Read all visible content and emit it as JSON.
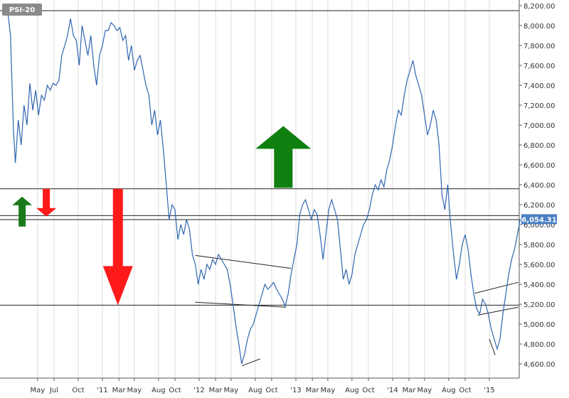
{
  "chart_data": {
    "type": "line",
    "title": "PSI-20",
    "last_value_label": "6,054.31",
    "ylim": [
      4500,
      8250
    ],
    "y_ticks": [
      {
        "value": 4600,
        "label": "4,600.00"
      },
      {
        "value": 4800,
        "label": "4,800.00"
      },
      {
        "value": 5000,
        "label": "5,000.00"
      },
      {
        "value": 5200,
        "label": "5,200.00"
      },
      {
        "value": 5400,
        "label": "5,400.00"
      },
      {
        "value": 5600,
        "label": "5,600.00"
      },
      {
        "value": 5800,
        "label": "5,800.00"
      },
      {
        "value": 6000,
        "label": "6,000.00"
      },
      {
        "value": 6200,
        "label": "6,200.00"
      },
      {
        "value": 6400,
        "label": "6,400.00"
      },
      {
        "value": 6600,
        "label": "6,600.00"
      },
      {
        "value": 6800,
        "label": "6,800.00"
      },
      {
        "value": 7000,
        "label": "7,000.00"
      },
      {
        "value": 7200,
        "label": "7,200.00"
      },
      {
        "value": 7400,
        "label": "7,400.00"
      },
      {
        "value": 7600,
        "label": "7,600.00"
      },
      {
        "value": 7800,
        "label": "7,800.00"
      },
      {
        "value": 8000,
        "label": "8,000.00"
      },
      {
        "value": 8200,
        "label": "8,200.00"
      }
    ],
    "x_ticks": [
      {
        "t": 2010.33,
        "label": "May"
      },
      {
        "t": 2010.5,
        "label": "Jul"
      },
      {
        "t": 2010.75,
        "label": "Oct"
      },
      {
        "t": 2011.0,
        "label": "'11"
      },
      {
        "t": 2011.17,
        "label": "Mar"
      },
      {
        "t": 2011.33,
        "label": "May"
      },
      {
        "t": 2011.58,
        "label": "Aug"
      },
      {
        "t": 2011.75,
        "label": "Oct"
      },
      {
        "t": 2012.0,
        "label": "'12"
      },
      {
        "t": 2012.17,
        "label": "Mar"
      },
      {
        "t": 2012.33,
        "label": "May"
      },
      {
        "t": 2012.58,
        "label": "Aug"
      },
      {
        "t": 2012.75,
        "label": "Oct"
      },
      {
        "t": 2013.0,
        "label": "'13"
      },
      {
        "t": 2013.17,
        "label": "Mar"
      },
      {
        "t": 2013.33,
        "label": "May"
      },
      {
        "t": 2013.58,
        "label": "Aug"
      },
      {
        "t": 2013.75,
        "label": "Oct"
      },
      {
        "t": 2014.0,
        "label": "'14"
      },
      {
        "t": 2014.17,
        "label": "Mar"
      },
      {
        "t": 2014.33,
        "label": "May"
      },
      {
        "t": 2014.58,
        "label": "Aug"
      },
      {
        "t": 2014.75,
        "label": "Oct"
      },
      {
        "t": 2015.0,
        "label": "'15"
      }
    ],
    "grid": "vertical",
    "series": [
      {
        "color": "#2f66b0",
        "points": [
          [
            2010.02,
            8150
          ],
          [
            2010.05,
            7900
          ],
          [
            2010.08,
            6950
          ],
          [
            2010.1,
            6620
          ],
          [
            2010.13,
            7050
          ],
          [
            2010.16,
            6800
          ],
          [
            2010.19,
            7200
          ],
          [
            2010.22,
            7000
          ],
          [
            2010.25,
            7420
          ],
          [
            2010.28,
            7150
          ],
          [
            2010.31,
            7350
          ],
          [
            2010.34,
            7100
          ],
          [
            2010.37,
            7300
          ],
          [
            2010.4,
            7250
          ],
          [
            2010.43,
            7400
          ],
          [
            2010.46,
            7350
          ],
          [
            2010.49,
            7420
          ],
          [
            2010.52,
            7400
          ],
          [
            2010.55,
            7450
          ],
          [
            2010.58,
            7700
          ],
          [
            2010.61,
            7800
          ],
          [
            2010.64,
            7900
          ],
          [
            2010.67,
            8070
          ],
          [
            2010.7,
            7900
          ],
          [
            2010.73,
            7850
          ],
          [
            2010.76,
            7600
          ],
          [
            2010.79,
            8000
          ],
          [
            2010.82,
            7850
          ],
          [
            2010.85,
            7700
          ],
          [
            2010.88,
            7900
          ],
          [
            2010.91,
            7600
          ],
          [
            2010.94,
            7400
          ],
          [
            2010.97,
            7700
          ],
          [
            2011.0,
            7800
          ],
          [
            2011.03,
            7950
          ],
          [
            2011.06,
            7950
          ],
          [
            2011.09,
            8030
          ],
          [
            2011.12,
            8000
          ],
          [
            2011.15,
            7950
          ],
          [
            2011.18,
            7980
          ],
          [
            2011.21,
            7850
          ],
          [
            2011.24,
            7900
          ],
          [
            2011.27,
            7650
          ],
          [
            2011.3,
            7800
          ],
          [
            2011.33,
            7550
          ],
          [
            2011.36,
            7650
          ],
          [
            2011.39,
            7700
          ],
          [
            2011.42,
            7550
          ],
          [
            2011.45,
            7400
          ],
          [
            2011.48,
            7300
          ],
          [
            2011.51,
            7000
          ],
          [
            2011.54,
            7150
          ],
          [
            2011.57,
            6900
          ],
          [
            2011.6,
            7050
          ],
          [
            2011.63,
            6750
          ],
          [
            2011.66,
            6400
          ],
          [
            2011.69,
            6050
          ],
          [
            2011.72,
            6200
          ],
          [
            2011.75,
            6150
          ],
          [
            2011.78,
            5850
          ],
          [
            2011.81,
            6000
          ],
          [
            2011.84,
            5900
          ],
          [
            2011.87,
            6050
          ],
          [
            2011.9,
            5950
          ],
          [
            2011.93,
            5700
          ],
          [
            2011.96,
            5600
          ],
          [
            2011.99,
            5400
          ],
          [
            2012.02,
            5550
          ],
          [
            2012.05,
            5450
          ],
          [
            2012.08,
            5600
          ],
          [
            2012.11,
            5550
          ],
          [
            2012.14,
            5650
          ],
          [
            2012.17,
            5600
          ],
          [
            2012.2,
            5700
          ],
          [
            2012.23,
            5650
          ],
          [
            2012.26,
            5600
          ],
          [
            2012.29,
            5550
          ],
          [
            2012.32,
            5400
          ],
          [
            2012.35,
            5200
          ],
          [
            2012.38,
            4980
          ],
          [
            2012.41,
            4800
          ],
          [
            2012.44,
            4600
          ],
          [
            2012.47,
            4700
          ],
          [
            2012.5,
            4850
          ],
          [
            2012.53,
            4950
          ],
          [
            2012.56,
            5000
          ],
          [
            2012.59,
            5100
          ],
          [
            2012.62,
            5200
          ],
          [
            2012.65,
            5300
          ],
          [
            2012.68,
            5400
          ],
          [
            2012.71,
            5350
          ],
          [
            2012.74,
            5380
          ],
          [
            2012.77,
            5420
          ],
          [
            2012.8,
            5350
          ],
          [
            2012.83,
            5300
          ],
          [
            2012.86,
            5250
          ],
          [
            2012.89,
            5180
          ],
          [
            2012.92,
            5300
          ],
          [
            2012.95,
            5500
          ],
          [
            2012.98,
            5650
          ],
          [
            2013.01,
            5800
          ],
          [
            2013.04,
            6100
          ],
          [
            2013.07,
            6200
          ],
          [
            2013.1,
            6250
          ],
          [
            2013.13,
            6150
          ],
          [
            2013.16,
            6050
          ],
          [
            2013.19,
            6150
          ],
          [
            2013.22,
            6100
          ],
          [
            2013.25,
            5900
          ],
          [
            2013.28,
            5650
          ],
          [
            2013.31,
            5900
          ],
          [
            2013.34,
            6150
          ],
          [
            2013.37,
            6250
          ],
          [
            2013.4,
            6150
          ],
          [
            2013.43,
            6050
          ],
          [
            2013.46,
            5750
          ],
          [
            2013.49,
            5450
          ],
          [
            2013.52,
            5550
          ],
          [
            2013.55,
            5400
          ],
          [
            2013.58,
            5500
          ],
          [
            2013.61,
            5700
          ],
          [
            2013.64,
            5800
          ],
          [
            2013.67,
            5900
          ],
          [
            2013.7,
            6000
          ],
          [
            2013.73,
            6050
          ],
          [
            2013.76,
            6150
          ],
          [
            2013.79,
            6300
          ],
          [
            2013.82,
            6400
          ],
          [
            2013.85,
            6350
          ],
          [
            2013.88,
            6450
          ],
          [
            2013.91,
            6380
          ],
          [
            2013.94,
            6550
          ],
          [
            2013.97,
            6650
          ],
          [
            2014.0,
            6800
          ],
          [
            2014.03,
            7000
          ],
          [
            2014.06,
            7150
          ],
          [
            2014.09,
            7100
          ],
          [
            2014.12,
            7300
          ],
          [
            2014.15,
            7450
          ],
          [
            2014.18,
            7550
          ],
          [
            2014.21,
            7650
          ],
          [
            2014.24,
            7500
          ],
          [
            2014.27,
            7400
          ],
          [
            2014.3,
            7300
          ],
          [
            2014.33,
            7100
          ],
          [
            2014.36,
            6900
          ],
          [
            2014.39,
            7000
          ],
          [
            2014.42,
            7150
          ],
          [
            2014.45,
            7050
          ],
          [
            2014.48,
            6800
          ],
          [
            2014.51,
            6300
          ],
          [
            2014.54,
            6150
          ],
          [
            2014.57,
            6400
          ],
          [
            2014.6,
            6000
          ],
          [
            2014.63,
            5700
          ],
          [
            2014.66,
            5450
          ],
          [
            2014.69,
            5600
          ],
          [
            2014.72,
            5800
          ],
          [
            2014.75,
            5900
          ],
          [
            2014.78,
            5750
          ],
          [
            2014.81,
            5500
          ],
          [
            2014.84,
            5300
          ],
          [
            2014.87,
            5150
          ],
          [
            2014.9,
            5100
          ],
          [
            2014.93,
            5250
          ],
          [
            2014.96,
            5200
          ],
          [
            2014.99,
            5100
          ],
          [
            2015.02,
            4950
          ],
          [
            2015.05,
            4850
          ],
          [
            2015.08,
            4750
          ],
          [
            2015.11,
            4850
          ],
          [
            2015.14,
            5100
          ],
          [
            2015.17,
            5300
          ],
          [
            2015.2,
            5500
          ],
          [
            2015.23,
            5650
          ],
          [
            2015.26,
            5750
          ],
          [
            2015.29,
            5900
          ],
          [
            2015.32,
            6054
          ]
        ]
      }
    ],
    "horizontal_lines": [
      6360,
      6090,
      6050,
      5190,
      8150
    ],
    "trendlines": [
      [
        [
          2011.96,
          5690
        ],
        [
          2012.95,
          5560
        ]
      ],
      [
        [
          2011.96,
          5220
        ],
        [
          2012.9,
          5170
        ]
      ],
      [
        [
          2012.44,
          4580
        ],
        [
          2012.63,
          4650
        ]
      ],
      [
        [
          2014.85,
          5310
        ],
        [
          2015.3,
          5420
        ]
      ],
      [
        [
          2014.88,
          5090
        ],
        [
          2015.3,
          5170
        ]
      ],
      [
        [
          2015.0,
          4850
        ],
        [
          2015.06,
          4690
        ]
      ]
    ],
    "arrows": [
      {
        "direction": "up",
        "color": "#1a7a1a",
        "t": 2010.17,
        "top_value": 6280,
        "bottom_value": 5980
      },
      {
        "direction": "down",
        "color": "#ff1a1a",
        "t": 2010.42,
        "top_value": 6360,
        "bottom_value": 6080
      },
      {
        "direction": "down",
        "color": "#ff1a1a",
        "t": 2011.16,
        "top_value": 6360,
        "bottom_value": 5190
      },
      {
        "direction": "up",
        "color": "#108010",
        "t": 2012.87,
        "top_value": 6990,
        "bottom_value": 6370
      }
    ]
  }
}
